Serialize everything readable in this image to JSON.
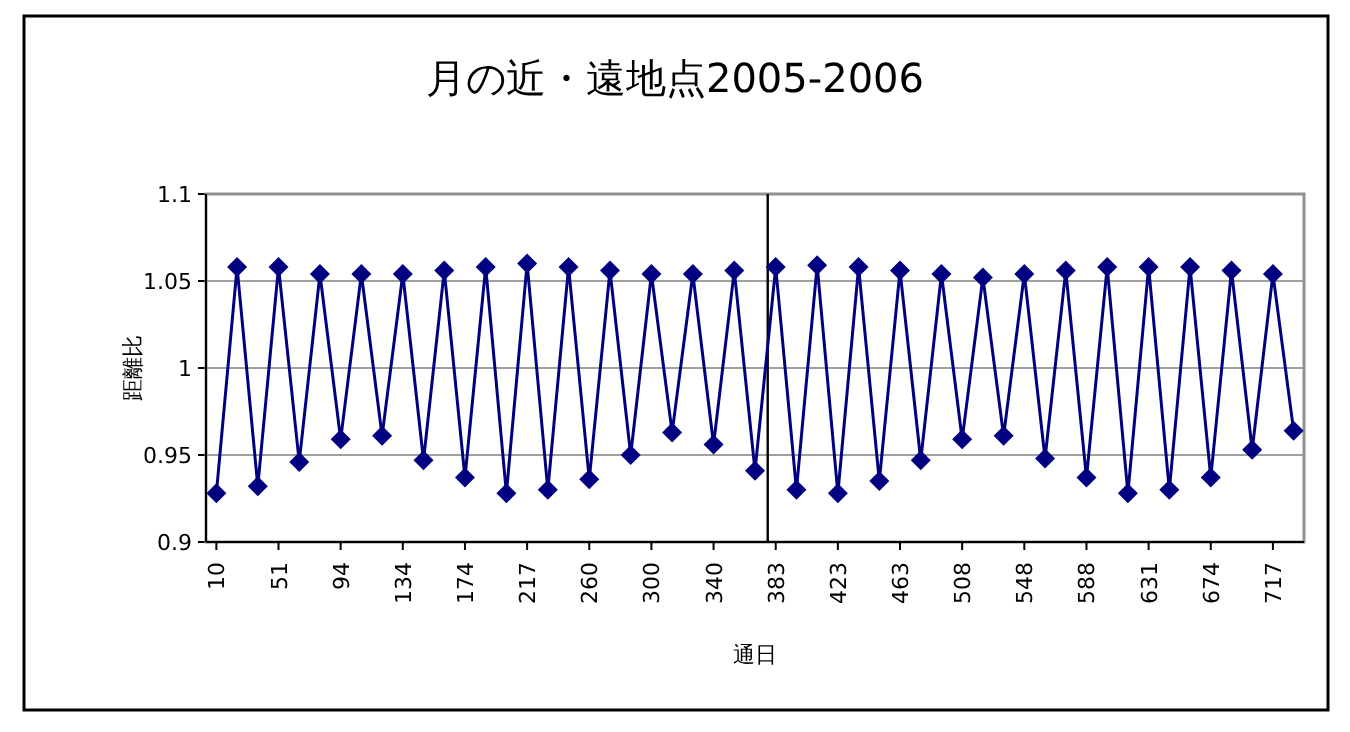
{
  "chart_data": {
    "type": "line",
    "title": "月の近・遠地点2005-2006",
    "xlabel": "通日",
    "ylabel": "距離比",
    "categories": [
      "10",
      null,
      null,
      "51",
      null,
      null,
      "94",
      null,
      null,
      "134",
      null,
      null,
      "174",
      null,
      null,
      "217",
      null,
      null,
      "260",
      null,
      null,
      "300",
      null,
      null,
      "340",
      null,
      null,
      "383",
      null,
      null,
      "423",
      null,
      null,
      "463",
      null,
      null,
      "508",
      null,
      null,
      "548",
      null,
      null,
      "588",
      null,
      null,
      "631",
      null,
      null,
      "674",
      null,
      null,
      "717",
      null
    ],
    "series": [
      {
        "color": "#000080",
        "values": [
          0.928,
          1.058,
          0.932,
          1.058,
          0.946,
          1.054,
          0.959,
          1.054,
          0.961,
          1.054,
          0.947,
          1.056,
          0.937,
          1.058,
          0.928,
          1.06,
          0.93,
          1.058,
          0.936,
          1.056,
          0.95,
          1.054,
          0.963,
          1.054,
          0.956,
          1.056,
          0.941,
          1.058,
          0.93,
          1.059,
          0.928,
          1.058,
          0.935,
          1.056,
          0.947,
          1.054,
          0.959,
          1.052,
          0.961,
          1.054,
          0.948,
          1.056,
          0.937,
          1.058,
          0.928,
          1.058,
          0.93,
          1.058,
          0.937,
          1.056,
          0.953,
          1.054,
          0.964
        ]
      }
    ],
    "ylim": [
      0.9,
      1.1
    ],
    "yticks": [
      0.9,
      0.95,
      1,
      1.05,
      1.1
    ],
    "ref_lines": [
      {
        "axis": "x",
        "value": "383",
        "color": "#000000"
      }
    ],
    "grid": "y",
    "marker": "diamond",
    "line_style": "solid"
  }
}
